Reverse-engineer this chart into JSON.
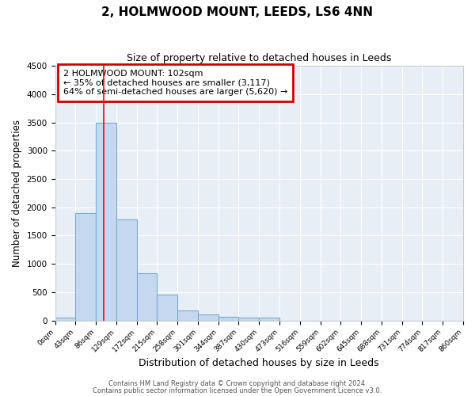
{
  "title": "2, HOLMWOOD MOUNT, LEEDS, LS6 4NN",
  "subtitle": "Size of property relative to detached houses in Leeds",
  "xlabel": "Distribution of detached houses by size in Leeds",
  "ylabel": "Number of detached properties",
  "bar_edges": [
    0,
    43,
    86,
    129,
    172,
    215,
    258,
    301,
    344,
    387,
    430,
    473,
    516,
    559,
    602,
    645,
    688,
    731,
    774,
    817,
    860
  ],
  "bar_heights": [
    50,
    1900,
    3500,
    1780,
    840,
    450,
    170,
    100,
    65,
    55,
    55,
    0,
    0,
    0,
    0,
    0,
    0,
    0,
    0,
    0
  ],
  "tick_labels": [
    "0sqm",
    "43sqm",
    "86sqm",
    "129sqm",
    "172sqm",
    "215sqm",
    "258sqm",
    "301sqm",
    "344sqm",
    "387sqm",
    "430sqm",
    "473sqm",
    "516sqm",
    "559sqm",
    "602sqm",
    "645sqm",
    "688sqm",
    "731sqm",
    "774sqm",
    "817sqm",
    "860sqm"
  ],
  "bar_color": "#c5d8ef",
  "bar_edge_color": "#7aadd4",
  "red_line_x": 102,
  "annotation_text": "2 HOLMWOOD MOUNT: 102sqm\n← 35% of detached houses are smaller (3,117)\n64% of semi-detached houses are larger (5,620) →",
  "annotation_box_color": "#ffffff",
  "annotation_box_edge": "#cc0000",
  "ylim": [
    0,
    4500
  ],
  "fig_bg_color": "#ffffff",
  "plot_bg_color": "#e8eef5",
  "footer_line1": "Contains HM Land Registry data © Crown copyright and database right 2024.",
  "footer_line2": "Contains public sector information licensed under the Open Government Licence v3.0.",
  "title_fontsize": 11,
  "subtitle_fontsize": 9,
  "footer_fontsize": 6
}
